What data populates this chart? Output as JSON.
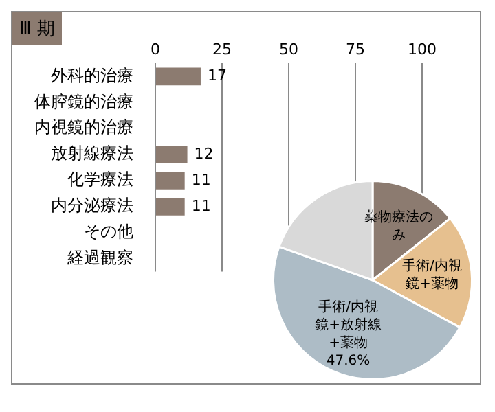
{
  "chart_data": [
    {
      "type": "bar",
      "title": "Ⅲ 期",
      "orientation": "horizontal",
      "categories": [
        "外科的治療",
        "体腔鏡的治療",
        "内視鏡的治療",
        "放射線療法",
        "化学療法",
        "内分泌療法",
        "その他",
        "経過観察"
      ],
      "values": [
        17,
        0,
        0,
        12,
        11,
        11,
        0,
        0
      ],
      "value_labels": [
        "17",
        null,
        null,
        "12",
        "11",
        "11",
        null,
        null
      ],
      "color": "#8c7b70",
      "xlim": [
        0,
        100
      ],
      "xticks": [
        0,
        25,
        50,
        75,
        100
      ],
      "grid": "x",
      "legend": false
    },
    {
      "type": "pie",
      "categories": [
        "薬物療法のみ",
        "手術/内視鏡+薬物",
        "手術/内視鏡+放射線+薬物",
        null
      ],
      "values": [
        14.3,
        18.6,
        47.6,
        19.5
      ],
      "colors": [
        "#8c7b70",
        "#e6c08f",
        "#adbcc6",
        "#d9d9d9"
      ],
      "value_labels": [
        null,
        null,
        "47.6%",
        null
      ],
      "legend": false
    }
  ]
}
